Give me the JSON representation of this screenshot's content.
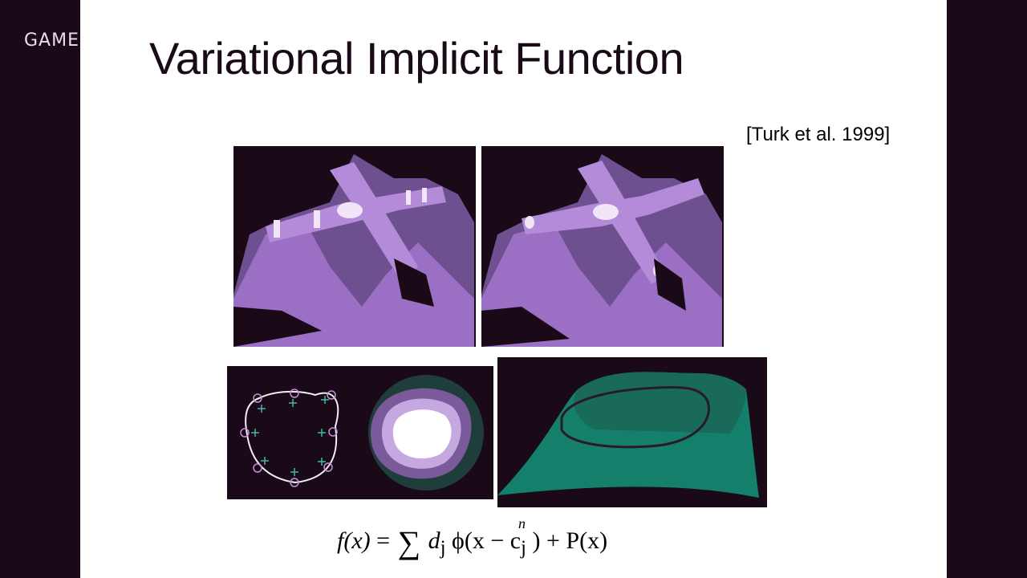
{
  "brand": "GAME",
  "slide": {
    "title": "Variational Implicit Function",
    "citation": "[Turk et al. 1999]"
  },
  "figures": [
    {
      "name": "surface-fit-left",
      "colors": {
        "bg": "#1a0a17",
        "surface": "#9a6fc4",
        "highlight": "#f0e6f7"
      }
    },
    {
      "name": "surface-fit-right",
      "colors": {
        "bg": "#1a0a17",
        "surface": "#9a6fc4",
        "highlight": "#f0e6f7"
      }
    },
    {
      "name": "constraint-curve-2d",
      "colors": {
        "bg": "#1a0a17",
        "curve": "#f2eef6",
        "circle": "#c58fd6",
        "plus": "#3fb8a0"
      }
    },
    {
      "name": "implicit-surface-3d",
      "colors": {
        "bg": "#1a0a17",
        "surface": "#14806b",
        "curve": "#2a1a28"
      }
    }
  ],
  "formula": {
    "lhs": "f(x)",
    "equals": "=",
    "sum_upper": "n",
    "term": "d",
    "term_sub": "j",
    "phi": "ϕ(x − c",
    "phi_sub": "j",
    "tail": ") + P(x)"
  }
}
